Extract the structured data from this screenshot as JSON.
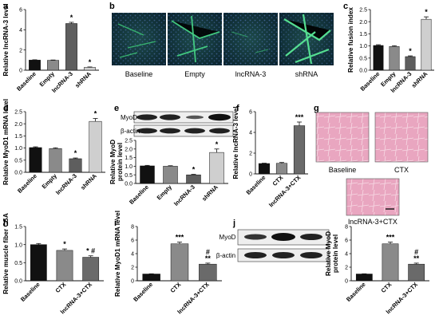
{
  "panels": {
    "a": {
      "letter": "a",
      "ylabel": "Relative lncRNA-3 level",
      "chart_data": {
        "type": "bar",
        "categories": [
          "Baseline",
          "Empty",
          "lncRNA-3",
          "shRNA"
        ],
        "values": [
          1.0,
          0.98,
          4.62,
          0.28
        ],
        "errors": [
          0.03,
          0.03,
          0.12,
          0.04
        ],
        "ylim": [
          0,
          6
        ],
        "yticks": [
          0,
          2,
          4,
          6
        ],
        "sig": [
          "",
          "",
          "*",
          "*"
        ],
        "colors": [
          "#111111",
          "#8a8a8a",
          "#5e5e5e",
          "#cfcfcf"
        ]
      }
    },
    "b": {
      "letter": "b",
      "captions": [
        "Baseline",
        "Empty",
        "lncRNA-3",
        "shRNA"
      ]
    },
    "c": {
      "letter": "c",
      "ylabel": "Relative fusion index",
      "chart_data": {
        "type": "bar",
        "categories": [
          "Baseline",
          "Empty",
          "lncRNA-3",
          "shRNA"
        ],
        "values": [
          1.02,
          0.98,
          0.56,
          2.1
        ],
        "errors": [
          0.03,
          0.03,
          0.03,
          0.1
        ],
        "ylim": [
          0,
          2.5
        ],
        "yticks": [
          0.0,
          0.5,
          1.0,
          1.5,
          2.0,
          2.5
        ],
        "sig": [
          "",
          "",
          "*",
          "*"
        ],
        "colors": [
          "#111111",
          "#8a8a8a",
          "#5e5e5e",
          "#cfcfcf"
        ]
      }
    },
    "d": {
      "letter": "d",
      "ylabel": "Relative MyoD1 mRNA level",
      "chart_data": {
        "type": "bar",
        "categories": [
          "Baseline",
          "Empty",
          "lncRNA-3",
          "shRNA"
        ],
        "values": [
          1.02,
          0.98,
          0.56,
          2.1
        ],
        "errors": [
          0.03,
          0.03,
          0.03,
          0.12
        ],
        "ylim": [
          0,
          2.5
        ],
        "yticks": [
          0.0,
          0.5,
          1.0,
          1.5,
          2.0,
          2.5
        ],
        "sig": [
          "",
          "",
          "*",
          "*"
        ],
        "colors": [
          "#111111",
          "#8a8a8a",
          "#5e5e5e",
          "#cfcfcf"
        ]
      }
    },
    "e": {
      "letter": "e",
      "blot_labels": [
        "MyoD",
        "β-actin"
      ],
      "ylabel": "Relative MyoD protein level",
      "chart_data": {
        "type": "bar",
        "categories": [
          "Baseline",
          "Empty",
          "lncRNA-3",
          "shRNA"
        ],
        "values": [
          1.02,
          1.0,
          0.5,
          1.8
        ],
        "errors": [
          0.03,
          0.03,
          0.03,
          0.2
        ],
        "ylim": [
          0,
          2.5
        ],
        "yticks": [
          0.0,
          0.5,
          1.0,
          1.5,
          2.0,
          2.5
        ],
        "sig": [
          "",
          "",
          "*",
          "*"
        ],
        "colors": [
          "#111111",
          "#8a8a8a",
          "#5e5e5e",
          "#cfcfcf"
        ]
      }
    },
    "f": {
      "letter": "f",
      "ylabel": "Relative lncRNA-3 level",
      "chart_data": {
        "type": "bar",
        "categories": [
          "Baseline",
          "CTX",
          "lncRNA-3+CTX"
        ],
        "values": [
          1.0,
          1.02,
          4.65
        ],
        "errors": [
          0.03,
          0.08,
          0.35
        ],
        "ylim": [
          0,
          6
        ],
        "yticks": [
          0,
          2,
          4,
          6
        ],
        "sig": [
          "",
          "",
          "***"
        ],
        "colors": [
          "#111111",
          "#8a8a8a",
          "#6a6a6a"
        ]
      }
    },
    "g": {
      "letter": "g",
      "captions": [
        "Baseline",
        "CTX",
        "lncRNA-3+CTX"
      ]
    },
    "h": {
      "letter": "h",
      "ylabel": "Relative muscle fiber CSA",
      "chart_data": {
        "type": "bar",
        "categories": [
          "Baseline",
          "CTX",
          "lncRNA-3+CTX"
        ],
        "values": [
          1.0,
          0.84,
          0.65
        ],
        "errors": [
          0.03,
          0.04,
          0.04
        ],
        "ylim": [
          0,
          1.5
        ],
        "yticks": [
          0.0,
          0.5,
          1.0,
          1.5
        ],
        "sig": [
          "",
          "*",
          "* #"
        ],
        "colors": [
          "#111111",
          "#8a8a8a",
          "#6a6a6a"
        ]
      }
    },
    "i": {
      "letter": "i",
      "ylabel": "Relative MyoD1 mRNA level",
      "chart_data": {
        "type": "bar",
        "categories": [
          "Baseline",
          "CTX",
          "lncRNA-3+CTX"
        ],
        "values": [
          1.0,
          5.45,
          2.45
        ],
        "errors": [
          0.03,
          0.25,
          0.15
        ],
        "ylim": [
          0,
          8
        ],
        "yticks": [
          0,
          2,
          4,
          6,
          8
        ],
        "sig": [
          "",
          "***",
          "#\n**"
        ],
        "colors": [
          "#111111",
          "#8a8a8a",
          "#6a6a6a"
        ]
      }
    },
    "j": {
      "letter": "j",
      "blot_labels": [
        "MyoD",
        "β-actin"
      ],
      "ylabel": "Relative MyoD protein level",
      "chart_data": {
        "type": "bar",
        "categories": [
          "Baseline",
          "CTX",
          "lncRNA-3+CTX"
        ],
        "values": [
          1.0,
          5.45,
          2.45
        ],
        "errors": [
          0.03,
          0.25,
          0.15
        ],
        "ylim": [
          0,
          8
        ],
        "yticks": [
          0,
          2,
          4,
          6,
          8
        ],
        "sig": [
          "",
          "***",
          "#\n**"
        ],
        "colors": [
          "#111111",
          "#8a8a8a",
          "#6a6a6a"
        ]
      }
    }
  },
  "scale_bar_color": "#111111"
}
